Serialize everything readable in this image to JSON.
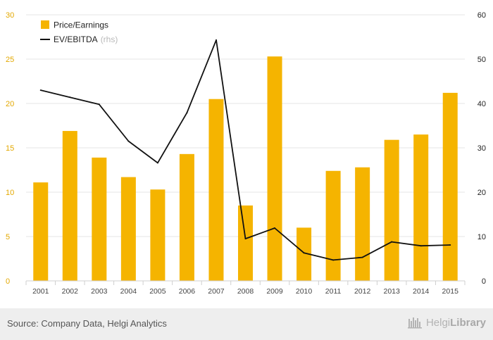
{
  "chart_data": {
    "type": "bar",
    "categories": [
      "2001",
      "2002",
      "2003",
      "2004",
      "2005",
      "2006",
      "2007",
      "2008",
      "2009",
      "2010",
      "2011",
      "2012",
      "2013",
      "2014",
      "2015"
    ],
    "series": [
      {
        "name": "Price/Earnings",
        "type": "bar",
        "axis": "left",
        "color": "#f5b400",
        "values": [
          11.1,
          16.9,
          13.9,
          11.7,
          10.3,
          14.3,
          20.5,
          8.5,
          25.3,
          6.0,
          12.4,
          12.8,
          15.9,
          16.5,
          21.2
        ]
      },
      {
        "name": "EV/EBITDA",
        "name_suffix": "(rhs)",
        "type": "line",
        "axis": "right",
        "color": "#111111",
        "values": [
          43.0,
          41.4,
          39.8,
          31.5,
          26.6,
          37.9,
          54.3,
          9.5,
          11.9,
          6.3,
          4.7,
          5.3,
          8.8,
          7.9,
          8.1
        ]
      }
    ],
    "y_left": {
      "min": 0,
      "max": 30,
      "ticks": [
        "0",
        "5",
        "10",
        "15",
        "20",
        "25",
        "30"
      ]
    },
    "y_right": {
      "min": 0,
      "max": 60,
      "ticks": [
        "0",
        "10",
        "20",
        "30",
        "40",
        "50",
        "60"
      ]
    },
    "grid": true,
    "legend_position": "top-left"
  },
  "footer": {
    "source": "Source: Company Data, Helgi Analytics",
    "brand_regular": "Helgi",
    "brand_bold": "Library",
    "brand_icon": "bookshelf-icon"
  }
}
